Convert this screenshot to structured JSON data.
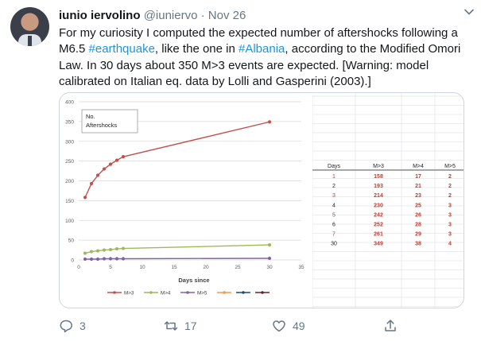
{
  "tweet": {
    "author_name": "iunio iervolino",
    "handle": "@iuniervo",
    "separator": "·",
    "date": "Nov 26",
    "text_parts": [
      {
        "text": "For my curiosity I computed the expected number of aftershocks following a M6.5 ",
        "type": "plain"
      },
      {
        "text": "#earthquake",
        "type": "hashtag"
      },
      {
        "text": ", like the one in ",
        "type": "plain"
      },
      {
        "text": "#Albania",
        "type": "hashtag"
      },
      {
        "text": ", according to the Modified Omori Law. In 30 days about 350 M>3 events are expected. [Warning: model calibrated on Italian eq. data by Lolli and Gasperini (2003).]",
        "type": "plain"
      }
    ],
    "link_color": "#1b95e0",
    "actions": {
      "reply_count": "3",
      "retweet_count": "17",
      "like_count": "49"
    }
  },
  "chart_data": {
    "type": "line",
    "title": "",
    "chart_box_label": [
      "No.",
      "Aftershocks"
    ],
    "xlabel": "Days since",
    "ylabel": "",
    "xlim": [
      0,
      35
    ],
    "ylim": [
      0,
      400
    ],
    "x_ticks": [
      0,
      5,
      10,
      15,
      20,
      25,
      30,
      35
    ],
    "y_ticks": [
      0,
      50,
      100,
      150,
      200,
      250,
      300,
      350,
      400
    ],
    "grid": true,
    "legend_position": "bottom",
    "x": [
      1,
      2,
      3,
      4,
      5,
      6,
      7,
      30
    ],
    "series": [
      {
        "name": "M>3",
        "color": "#c0504d",
        "values": [
          158,
          193,
          214,
          230,
          242,
          252,
          261,
          349
        ]
      },
      {
        "name": "M>4",
        "color": "#9bbb59",
        "values": [
          17,
          21,
          23,
          25,
          26,
          28,
          29,
          38
        ]
      },
      {
        "name": "M>5",
        "color": "#8064a2",
        "values": [
          2,
          2,
          2,
          3,
          3,
          3,
          3,
          4
        ]
      }
    ],
    "legend_extra_colors": [
      "#f79646",
      "#1f497d",
      "#632523"
    ]
  },
  "data_table": {
    "headers": [
      "Days",
      "M>3",
      "M>4",
      "M>5"
    ],
    "rows": [
      {
        "day": "1",
        "m3": "158",
        "m4": "17",
        "m5": "2",
        "day_color": "#c0392b"
      },
      {
        "day": "2",
        "m3": "193",
        "m4": "21",
        "m5": "2",
        "day_color": "#222222"
      },
      {
        "day": "3",
        "m3": "214",
        "m4": "23",
        "m5": "2",
        "day_color": "#c0392b"
      },
      {
        "day": "4",
        "m3": "230",
        "m4": "25",
        "m5": "3",
        "day_color": "#222222"
      },
      {
        "day": "5",
        "m3": "242",
        "m4": "26",
        "m5": "3",
        "day_color": "#c0392b"
      },
      {
        "day": "6",
        "m3": "252",
        "m4": "28",
        "m5": "3",
        "day_color": "#222222"
      },
      {
        "day": "7",
        "m3": "261",
        "m4": "29",
        "m5": "3",
        "day_color": "#c0392b"
      },
      {
        "day": "30",
        "m3": "349",
        "m4": "38",
        "m5": "4",
        "day_color": "#222222"
      }
    ],
    "value_color": "#c0392b"
  }
}
